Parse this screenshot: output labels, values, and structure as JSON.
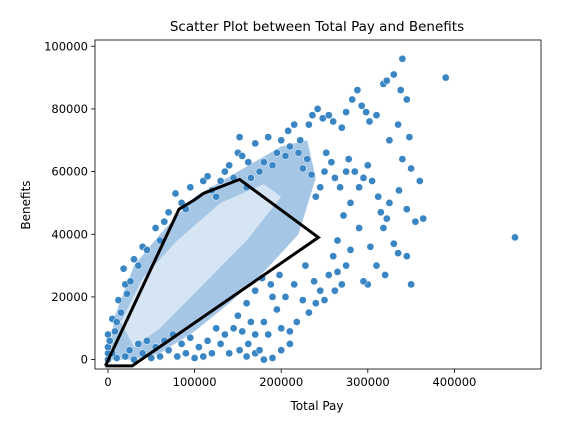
{
  "chart_data": {
    "type": "scatter",
    "title": "Scatter Plot between Total Pay and Benefits",
    "xlabel": "Total Pay",
    "ylabel": "Benefits",
    "xlim": [
      -15000,
      500000
    ],
    "ylim": [
      -3000,
      102000
    ],
    "xticks": [
      0,
      100000,
      200000,
      300000,
      400000
    ],
    "yticks": [
      0,
      20000,
      40000,
      60000,
      80000,
      100000
    ],
    "grid": false,
    "point_color": "#3a86c4",
    "hull_color": "#000000",
    "dense_band": [
      [
        0,
        0
      ],
      [
        8000,
        14000
      ],
      [
        30000,
        30000
      ],
      [
        60000,
        40000
      ],
      [
        100000,
        52000
      ],
      [
        150000,
        60000
      ],
      [
        200000,
        68000
      ],
      [
        230000,
        70000
      ],
      [
        240000,
        58000
      ],
      [
        220000,
        40000
      ],
      [
        180000,
        28000
      ],
      [
        140000,
        18000
      ],
      [
        100000,
        9000
      ],
      [
        60000,
        2000
      ],
      [
        30000,
        0
      ]
    ],
    "core_band": [
      [
        15000,
        12000
      ],
      [
        40000,
        26000
      ],
      [
        80000,
        38000
      ],
      [
        130000,
        50000
      ],
      [
        180000,
        56000
      ],
      [
        200000,
        52000
      ],
      [
        160000,
        38000
      ],
      [
        110000,
        24000
      ],
      [
        60000,
        10000
      ],
      [
        30000,
        4000
      ]
    ],
    "hull": [
      [
        -3000,
        -2000
      ],
      [
        28000,
        -2000
      ],
      [
        243000,
        39000
      ],
      [
        152000,
        57500
      ],
      [
        110000,
        53000
      ],
      [
        100000,
        51000
      ],
      [
        82000,
        48000
      ],
      [
        -3000,
        -2000
      ]
    ],
    "points": [
      [
        0,
        8000
      ],
      [
        5000,
        13000
      ],
      [
        10000,
        12000
      ],
      [
        12000,
        19000
      ],
      [
        20000,
        24000
      ],
      [
        18000,
        29000
      ],
      [
        30000,
        32000
      ],
      [
        40000,
        36000
      ],
      [
        55000,
        42000
      ],
      [
        78000,
        53000
      ],
      [
        95000,
        55000
      ],
      [
        110000,
        57000
      ],
      [
        115000,
        58500
      ],
      [
        130000,
        57000
      ],
      [
        150000,
        66000
      ],
      [
        152000,
        71000
      ],
      [
        155000,
        65000
      ],
      [
        162000,
        63000
      ],
      [
        170000,
        69000
      ],
      [
        185000,
        71000
      ],
      [
        200000,
        70000
      ],
      [
        208000,
        73000
      ],
      [
        215000,
        75000
      ],
      [
        222000,
        70000
      ],
      [
        232000,
        75000
      ],
      [
        236000,
        78000
      ],
      [
        242000,
        80000
      ],
      [
        248000,
        77000
      ],
      [
        255000,
        78000
      ],
      [
        260000,
        76000
      ],
      [
        270000,
        74000
      ],
      [
        275000,
        79000
      ],
      [
        282000,
        83000
      ],
      [
        288000,
        86000
      ],
      [
        293000,
        81000
      ],
      [
        298000,
        79000
      ],
      [
        302000,
        76000
      ],
      [
        310000,
        78000
      ],
      [
        318000,
        88000
      ],
      [
        322000,
        89000
      ],
      [
        330000,
        91000
      ],
      [
        340000,
        96000
      ],
      [
        338000,
        86000
      ],
      [
        345000,
        83000
      ],
      [
        325000,
        70000
      ],
      [
        335000,
        75000
      ],
      [
        348000,
        71000
      ],
      [
        360000,
        57000
      ],
      [
        350000,
        61000
      ],
      [
        340000,
        64000
      ],
      [
        336000,
        54000
      ],
      [
        345000,
        48000
      ],
      [
        355000,
        44000
      ],
      [
        364000,
        45000
      ],
      [
        390000,
        90000
      ],
      [
        470000,
        39000
      ],
      [
        330000,
        37000
      ],
      [
        335000,
        34000
      ],
      [
        345000,
        33000
      ],
      [
        350000,
        24000
      ],
      [
        320000,
        27000
      ],
      [
        310000,
        30000
      ],
      [
        300000,
        24000
      ],
      [
        295000,
        25000
      ],
      [
        303000,
        36000
      ],
      [
        290000,
        42000
      ],
      [
        280000,
        50000
      ],
      [
        272000,
        46000
      ],
      [
        265000,
        38000
      ],
      [
        260000,
        33000
      ],
      [
        255000,
        27000
      ],
      [
        245000,
        22000
      ],
      [
        240000,
        18000
      ],
      [
        232000,
        15000
      ],
      [
        225000,
        19000
      ],
      [
        218000,
        12000
      ],
      [
        210000,
        9000
      ],
      [
        200000,
        10000
      ],
      [
        195000,
        16000
      ],
      [
        190000,
        20000
      ],
      [
        180000,
        12000
      ],
      [
        170000,
        8000
      ],
      [
        162000,
        5000
      ],
      [
        152000,
        3000
      ],
      [
        140000,
        2000
      ],
      [
        130000,
        5000
      ],
      [
        120000,
        2000
      ],
      [
        110000,
        1000
      ],
      [
        100000,
        500
      ],
      [
        90000,
        2000
      ],
      [
        80000,
        1000
      ],
      [
        70000,
        3000
      ],
      [
        60000,
        1000
      ],
      [
        50000,
        500
      ],
      [
        40000,
        2000
      ],
      [
        30000,
        0
      ],
      [
        20000,
        1000
      ],
      [
        10000,
        500
      ],
      [
        5000,
        2000
      ],
      [
        0,
        0
      ],
      [
        0,
        2000
      ],
      [
        0,
        4000
      ],
      [
        2000,
        6000
      ],
      [
        8000,
        9000
      ],
      [
        15000,
        15000
      ],
      [
        22000,
        21000
      ],
      [
        26000,
        25000
      ],
      [
        35000,
        30000
      ],
      [
        45000,
        35000
      ],
      [
        60000,
        38000
      ],
      [
        65000,
        44000
      ],
      [
        70000,
        47000
      ],
      [
        85000,
        50000
      ],
      [
        90000,
        48000
      ],
      [
        120000,
        54000
      ],
      [
        125000,
        52000
      ],
      [
        135000,
        60000
      ],
      [
        140000,
        62000
      ],
      [
        145000,
        58000
      ],
      [
        160000,
        55000
      ],
      [
        165000,
        58000
      ],
      [
        175000,
        60000
      ],
      [
        180000,
        63000
      ],
      [
        190000,
        62000
      ],
      [
        195000,
        66000
      ],
      [
        205000,
        65000
      ],
      [
        210000,
        68000
      ],
      [
        220000,
        66000
      ],
      [
        225000,
        61000
      ],
      [
        230000,
        64000
      ],
      [
        235000,
        59000
      ],
      [
        240000,
        52000
      ],
      [
        245000,
        55000
      ],
      [
        250000,
        60000
      ],
      [
        252000,
        66000
      ],
      [
        258000,
        63000
      ],
      [
        262000,
        58000
      ],
      [
        268000,
        55000
      ],
      [
        275000,
        60000
      ],
      [
        278000,
        64000
      ],
      [
        285000,
        60000
      ],
      [
        290000,
        55000
      ],
      [
        295000,
        58000
      ],
      [
        300000,
        62000
      ],
      [
        305000,
        57000
      ],
      [
        312000,
        52000
      ],
      [
        315000,
        47000
      ],
      [
        318000,
        42000
      ],
      [
        322000,
        45000
      ],
      [
        325000,
        50000
      ],
      [
        280000,
        35000
      ],
      [
        275000,
        30000
      ],
      [
        265000,
        28000
      ],
      [
        270000,
        24000
      ],
      [
        262000,
        22000
      ],
      [
        250000,
        19000
      ],
      [
        238000,
        25000
      ],
      [
        228000,
        30000
      ],
      [
        215000,
        24000
      ],
      [
        205000,
        20000
      ],
      [
        198000,
        27000
      ],
      [
        188000,
        24000
      ],
      [
        178000,
        26000
      ],
      [
        170000,
        22000
      ],
      [
        160000,
        18000
      ],
      [
        150000,
        14000
      ],
      [
        145000,
        10000
      ],
      [
        135000,
        8000
      ],
      [
        125000,
        10000
      ],
      [
        115000,
        6000
      ],
      [
        105000,
        4000
      ],
      [
        95000,
        7000
      ],
      [
        85000,
        5000
      ],
      [
        75000,
        8000
      ],
      [
        65000,
        6000
      ],
      [
        55000,
        4000
      ],
      [
        45000,
        6000
      ],
      [
        35000,
        5000
      ],
      [
        25000,
        3000
      ],
      [
        160000,
        1000
      ],
      [
        170000,
        2000
      ],
      [
        180000,
        0
      ],
      [
        190000,
        500
      ],
      [
        200000,
        3000
      ],
      [
        210000,
        5000
      ],
      [
        185000,
        8000
      ],
      [
        175000,
        3000
      ],
      [
        165000,
        12000
      ],
      [
        155000,
        9000
      ]
    ]
  }
}
